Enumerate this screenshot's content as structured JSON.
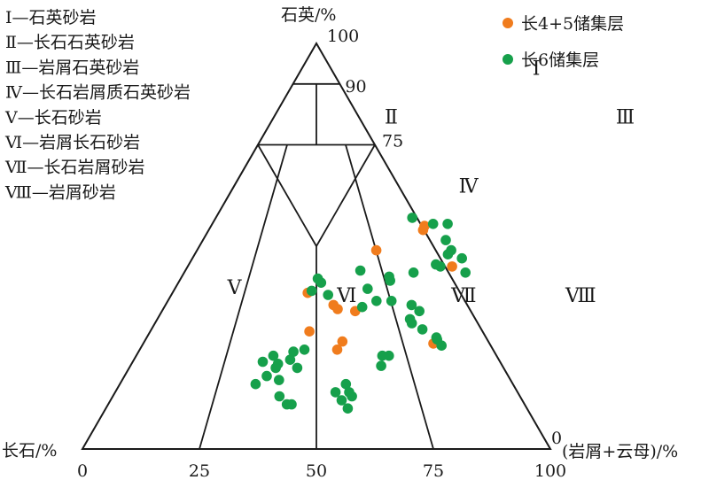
{
  "chart_data": {
    "type": "scatter",
    "subtype": "ternary",
    "title": "",
    "axes": {
      "top": {
        "label": "石英/%",
        "ticks": [
          "100",
          "90",
          "75"
        ]
      },
      "left": {
        "label": "长石/%"
      },
      "right": {
        "label": "(岩屑+云母)/%",
        "zero_label": "0"
      },
      "bottom_ticks": [
        "0",
        "25",
        "50",
        "75",
        "100"
      ]
    },
    "classification_key": [
      {
        "code": "Ⅰ",
        "text": "Ⅰ—石英砂岩"
      },
      {
        "code": "Ⅱ",
        "text": "Ⅱ—长石石英砂岩"
      },
      {
        "code": "Ⅲ",
        "text": "Ⅲ—岩屑石英砂岩"
      },
      {
        "code": "Ⅳ",
        "text": "Ⅳ—长石岩屑质石英砂岩"
      },
      {
        "code": "Ⅴ",
        "text": "Ⅴ—长石砂岩"
      },
      {
        "code": "Ⅵ",
        "text": "Ⅵ—岩屑长石砂岩"
      },
      {
        "code": "Ⅶ",
        "text": "Ⅶ—长石岩屑砂岩"
      },
      {
        "code": "Ⅷ",
        "text": "Ⅷ—岩屑砂岩"
      }
    ],
    "region_labels": [
      {
        "code": "Ⅰ",
        "q": 94,
        "r": 50
      },
      {
        "code": "Ⅱ",
        "q": 82,
        "r": 25
      },
      {
        "code": "Ⅲ",
        "q": 82,
        "r": 75
      },
      {
        "code": "Ⅳ",
        "q": 65,
        "r": 50
      },
      {
        "code": "Ⅴ",
        "q": 40,
        "r": 12.5
      },
      {
        "code": "Ⅵ",
        "q": 38,
        "r": 37.5
      },
      {
        "code": "Ⅶ",
        "q": 38,
        "r": 62.5
      },
      {
        "code": "Ⅷ",
        "q": 38,
        "r": 87.5
      }
    ],
    "legend_position": "top-right",
    "series": [
      {
        "name": "长4+5储集层",
        "color": "#f07c1d",
        "points": [
          {
            "q": 55.0,
            "r": 45.6
          },
          {
            "q": 54.0,
            "r": 45.8
          },
          {
            "q": 49.0,
            "r": 38.3
          },
          {
            "q": 45.0,
            "r": 56.5
          },
          {
            "q": 38.5,
            "r": 28.9
          },
          {
            "q": 35.5,
            "r": 35.9
          },
          {
            "q": 34.5,
            "r": 37.3
          },
          {
            "q": 34.0,
            "r": 41.3
          },
          {
            "q": 29.0,
            "r": 34.0
          },
          {
            "q": 26.5,
            "r": 42.3
          },
          {
            "q": 24.5,
            "r": 42.2
          },
          {
            "q": 26.0,
            "r": 62.0
          }
        ]
      },
      {
        "name": "长6储集层",
        "color": "#16a04b",
        "points": [
          {
            "q": 57.0,
            "r": 42.0
          },
          {
            "q": 55.5,
            "r": 47.2
          },
          {
            "q": 55.5,
            "r": 50.3
          },
          {
            "q": 51.5,
            "r": 51.9
          },
          {
            "q": 49.0,
            "r": 54.3
          },
          {
            "q": 48.0,
            "r": 54.1
          },
          {
            "q": 47.0,
            "r": 57.6
          },
          {
            "q": 45.5,
            "r": 52.8
          },
          {
            "q": 45.0,
            "r": 54.0
          },
          {
            "q": 42.5,
            "r": 44.3
          },
          {
            "q": 43.5,
            "r": 49.0
          },
          {
            "q": 43.5,
            "r": 60.1
          },
          {
            "q": 44.0,
            "r": 37.4
          },
          {
            "q": 41.5,
            "r": 45.0
          },
          {
            "q": 39.5,
            "r": 41.2
          },
          {
            "q": 42.0,
            "r": 29.3
          },
          {
            "q": 41.0,
            "r": 30.5
          },
          {
            "q": 39.0,
            "r": 29.5
          },
          {
            "q": 38.0,
            "r": 33.5
          },
          {
            "q": 36.5,
            "r": 44.6
          },
          {
            "q": 36.5,
            "r": 47.8
          },
          {
            "q": 35.5,
            "r": 52.6
          },
          {
            "q": 35.0,
            "r": 42.3
          },
          {
            "q": 34.0,
            "r": 55.0
          },
          {
            "q": 32.0,
            "r": 54.0
          },
          {
            "q": 31.0,
            "r": 54.9
          },
          {
            "q": 29.5,
            "r": 57.9
          },
          {
            "q": 27.5,
            "r": 61.9
          },
          {
            "q": 27.0,
            "r": 62.3
          },
          {
            "q": 25.5,
            "r": 64.0
          },
          {
            "q": 23.0,
            "r": 52.6
          },
          {
            "q": 23.0,
            "r": 54.0
          },
          {
            "q": 20.5,
            "r": 53.6
          },
          {
            "q": 24.5,
            "r": 35.2
          },
          {
            "q": 24.0,
            "r": 33.1
          },
          {
            "q": 22.0,
            "r": 33.4
          },
          {
            "q": 20.0,
            "r": 35.9
          },
          {
            "q": 23.0,
            "r": 29.3
          },
          {
            "q": 21.5,
            "r": 27.8
          },
          {
            "q": 21.0,
            "r": 31.3
          },
          {
            "q": 20.0,
            "r": 31.3
          },
          {
            "q": 18.0,
            "r": 30.4
          },
          {
            "q": 16.0,
            "r": 29.0
          },
          {
            "q": 17.0,
            "r": 33.5
          },
          {
            "q": 13.0,
            "r": 35.6
          },
          {
            "q": 11.0,
            "r": 38.2
          },
          {
            "q": 11.0,
            "r": 39.2
          },
          {
            "q": 16.0,
            "r": 48.3
          },
          {
            "q": 14.0,
            "r": 47.1
          },
          {
            "q": 14.0,
            "r": 50.0
          },
          {
            "q": 13.0,
            "r": 51.1
          },
          {
            "q": 12.0,
            "r": 49.4
          },
          {
            "q": 10.0,
            "r": 51.7
          }
        ]
      }
    ]
  }
}
